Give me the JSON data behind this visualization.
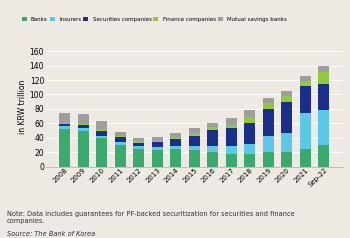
{
  "years": [
    "2008",
    "2009",
    "2010",
    "2011",
    "2012",
    "2013",
    "2014",
    "2015",
    "2016",
    "2017",
    "2018",
    "2019",
    "2020",
    "2021",
    "Sep-22"
  ],
  "banks": [
    52,
    50,
    40,
    30,
    24,
    23,
    24,
    23,
    20,
    17,
    17,
    20,
    20,
    24,
    30
  ],
  "insurers": [
    4,
    4,
    3,
    4,
    4,
    4,
    5,
    5,
    9,
    12,
    14,
    22,
    27,
    50,
    48
  ],
  "securities": [
    3,
    3,
    6,
    7,
    5,
    7,
    9,
    14,
    22,
    24,
    30,
    38,
    43,
    38,
    36
  ],
  "finance": [
    2,
    2,
    3,
    2,
    2,
    2,
    3,
    4,
    4,
    5,
    8,
    8,
    8,
    7,
    17
  ],
  "mutual_savings": [
    14,
    14,
    11,
    5,
    4,
    5,
    5,
    8,
    5,
    9,
    10,
    7,
    7,
    7,
    9
  ],
  "colors": {
    "banks": "#3aaa6e",
    "insurers": "#5bc8e8",
    "securities": "#1b2f8a",
    "finance": "#92c83e",
    "mutual_savings": "#9e9e9e"
  },
  "ylabel": "in KRW trillion",
  "ylim": [
    0,
    165
  ],
  "yticks": [
    0,
    20,
    40,
    60,
    80,
    100,
    120,
    140,
    160
  ],
  "legend_labels": [
    "Banks",
    "Insurers",
    "Securities companies",
    "Finance companies",
    "Mutual savings banks"
  ],
  "note": "Note: Data includes guarantees for PF-backed securitization for securities and finance\ncompanies.",
  "source": "Source: The Bank of Korea",
  "bg_color": "#eeeae3"
}
